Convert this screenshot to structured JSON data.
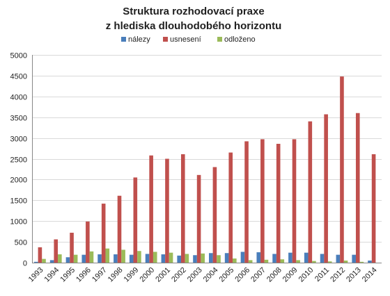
{
  "chart_data": {
    "type": "bar",
    "title": "Struktura rozhodovací praxe",
    "subtitle": "z hlediska dlouhodobého horizontu",
    "xlabel": "",
    "ylabel": "",
    "ylim": [
      0,
      5000
    ],
    "yticks": [
      "0",
      "500",
      "1000",
      "1500",
      "2000",
      "2500",
      "3000",
      "3500",
      "4000",
      "4500",
      "5000"
    ],
    "grid": true,
    "legend_position": "top",
    "categories": [
      "1993",
      "1994",
      "1995",
      "1996",
      "1997",
      "1998",
      "1999",
      "2000",
      "2001",
      "2002",
      "2003",
      "2004",
      "2005",
      "2006",
      "2007",
      "2008",
      "2009",
      "2010",
      "2011",
      "2012",
      "2013",
      "2014"
    ],
    "series": [
      {
        "name": "nálezy",
        "color": "#4a7ebb",
        "values": [
          20,
          60,
          130,
          190,
          200,
          200,
          190,
          210,
          200,
          170,
          180,
          230,
          230,
          260,
          250,
          210,
          240,
          240,
          210,
          190,
          190,
          50
        ]
      },
      {
        "name": "usnesení",
        "color": "#c0504d",
        "values": [
          370,
          560,
          720,
          990,
          1420,
          1610,
          2050,
          2580,
          2500,
          2610,
          2110,
          2300,
          2650,
          2920,
          2970,
          2860,
          2970,
          3400,
          3570,
          4480,
          3600,
          2610
        ]
      },
      {
        "name": "odloženo",
        "color": "#9bbb59",
        "values": [
          90,
          200,
          190,
          270,
          340,
          310,
          280,
          260,
          240,
          210,
          220,
          180,
          100,
          60,
          70,
          80,
          60,
          40,
          30,
          50,
          20,
          0
        ]
      }
    ]
  }
}
